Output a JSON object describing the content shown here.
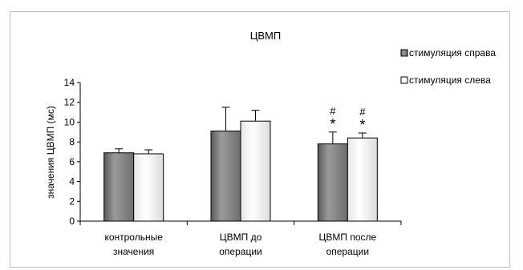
{
  "chart_data": {
    "type": "bar",
    "title": "ЦВМП",
    "ylabel": "значения ЦВМП (мс)",
    "xlabel": "",
    "ylim": [
      0,
      14
    ],
    "yticks": [
      0,
      2,
      4,
      6,
      8,
      10,
      12,
      14
    ],
    "grid": false,
    "legend_position": "right",
    "categories": [
      [
        "контрольные",
        "значения"
      ],
      [
        "ЦВМП до",
        "операции"
      ],
      [
        "ЦВМП после",
        "операции"
      ]
    ],
    "series": [
      {
        "name": "стимуляция справа",
        "color": "#808080",
        "values": [
          6.9,
          9.1,
          7.8
        ],
        "errors": [
          0.4,
          2.4,
          1.2
        ]
      },
      {
        "name": "стимуляция слева",
        "color": "#f2f2f2",
        "values": [
          6.8,
          10.1,
          8.4
        ],
        "errors": [
          0.4,
          1.1,
          0.5
        ]
      }
    ],
    "annotations": [
      {
        "category_index": 2,
        "series_index": 0,
        "labels": [
          "#",
          "*"
        ]
      },
      {
        "category_index": 2,
        "series_index": 1,
        "labels": [
          "#",
          "*"
        ]
      }
    ]
  }
}
